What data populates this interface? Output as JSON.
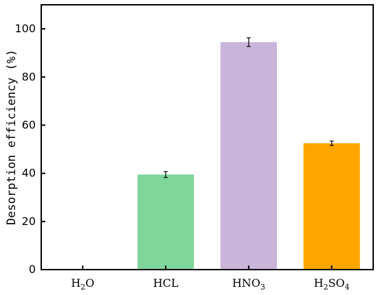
{
  "chart_data": {
    "type": "bar",
    "title": "",
    "xlabel": "",
    "ylabel": "Desorption efficiency (%)",
    "ylim": [
      0,
      110
    ],
    "yticks": [
      0,
      20,
      40,
      60,
      80,
      100
    ],
    "grid": false,
    "categories": [
      {
        "base": "H",
        "sub1": "2",
        "mid": "O",
        "sub2": ""
      },
      {
        "base": "HCL",
        "sub1": "",
        "mid": "",
        "sub2": ""
      },
      {
        "base": "HNO",
        "sub1": "3",
        "mid": "",
        "sub2": ""
      },
      {
        "base": "H",
        "sub1": "2",
        "mid": "SO",
        "sub2": "4"
      }
    ],
    "values": [
      0,
      39.5,
      94.5,
      52.5
    ],
    "errors": [
      0,
      1.2,
      1.8,
      0.9
    ],
    "colors": [
      "#7FD69A",
      "#7FD69A",
      "#C9B4DA",
      "#FFA500"
    ]
  }
}
